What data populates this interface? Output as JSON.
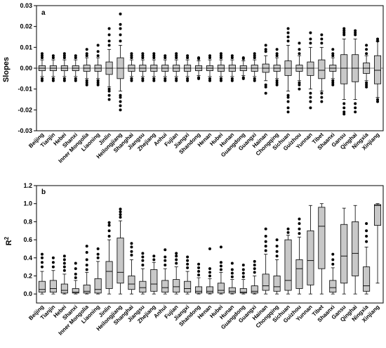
{
  "chart_data": [
    {
      "type": "box",
      "panel_label": "a",
      "ylabel": "Slopes",
      "ylim": [
        -0.03,
        0.03
      ],
      "yticks": [
        -0.03,
        -0.02,
        -0.01,
        0.0,
        0.01,
        0.02,
        0.03
      ],
      "ytick_labels": [
        "-0.03",
        "-0.02",
        "-0.01",
        "0.00",
        "0.01",
        "0.02",
        "0.03"
      ],
      "zero_line": true,
      "categories": [
        "Beijing",
        "Tianjin",
        "Hebei",
        "Shanxi",
        "Inner Mongolia",
        "Liaoning",
        "Jinlin",
        "Heilongjiang",
        "Shanghai",
        "Jiangsu",
        "Zhejiang",
        "Anhui",
        "Fujian",
        "Jiangxi",
        "Shandong",
        "Henan",
        "Hubei",
        "Hunan",
        "Guangdong",
        "Guangxi",
        "Hainan",
        "Chongqing",
        "Sichuan",
        "Guizhou",
        "Yunnan",
        "Tibet",
        "Shaanxi",
        "Gansu",
        "Qinghai",
        "Ningxia",
        "Xinjiang"
      ],
      "boxes": [
        {
          "q1": -0.0012,
          "median": 0.0,
          "q3": 0.0012,
          "wlo": -0.004,
          "whi": 0.004,
          "out": [
            -0.006,
            -0.005,
            0.005,
            0.006,
            0.007
          ]
        },
        {
          "q1": -0.0012,
          "median": 0.0,
          "q3": 0.0012,
          "wlo": -0.004,
          "whi": 0.004,
          "out": [
            -0.006,
            -0.005,
            0.005,
            0.006
          ]
        },
        {
          "q1": -0.0012,
          "median": 0.0,
          "q3": 0.0012,
          "wlo": -0.004,
          "whi": 0.004,
          "out": [
            -0.006,
            -0.005,
            0.005,
            0.006,
            0.007
          ]
        },
        {
          "q1": -0.0012,
          "median": 0.0,
          "q3": 0.0012,
          "wlo": -0.004,
          "whi": 0.004,
          "out": [
            -0.006,
            -0.005,
            0.005,
            0.006
          ]
        },
        {
          "q1": -0.0015,
          "median": 0.0,
          "q3": 0.0015,
          "wlo": -0.005,
          "whi": 0.005,
          "out": [
            -0.008,
            -0.007,
            -0.006,
            0.006,
            0.007,
            0.009
          ]
        },
        {
          "q1": -0.0015,
          "median": 0.0,
          "q3": 0.0015,
          "wlo": -0.005,
          "whi": 0.005,
          "out": [
            -0.008,
            -0.007,
            -0.006,
            0.006,
            0.008,
            0.011
          ]
        },
        {
          "q1": -0.003,
          "median": 0.0,
          "q3": 0.003,
          "wlo": -0.009,
          "whi": 0.009,
          "out": [
            -0.015,
            -0.013,
            -0.011,
            -0.01,
            0.011,
            0.013,
            0.016,
            0.019
          ]
        },
        {
          "q1": -0.005,
          "median": 0.0,
          "q3": 0.005,
          "wlo": -0.011,
          "whi": 0.011,
          "out": [
            -0.02,
            -0.018,
            -0.016,
            -0.014,
            -0.013,
            0.013,
            0.016,
            0.019,
            0.021,
            0.026
          ]
        },
        {
          "q1": -0.0015,
          "median": 0.0,
          "q3": 0.0015,
          "wlo": -0.004,
          "whi": 0.004,
          "out": [
            -0.006,
            -0.005,
            0.005,
            0.006,
            0.007
          ]
        },
        {
          "q1": -0.0015,
          "median": 0.0,
          "q3": 0.0015,
          "wlo": -0.004,
          "whi": 0.004,
          "out": [
            -0.006,
            -0.005,
            0.005,
            0.006,
            0.007
          ]
        },
        {
          "q1": -0.0015,
          "median": 0.0,
          "q3": 0.0015,
          "wlo": -0.004,
          "whi": 0.004,
          "out": [
            -0.006,
            -0.005,
            0.005,
            0.006,
            0.007
          ]
        },
        {
          "q1": -0.0015,
          "median": 0.0,
          "q3": 0.0015,
          "wlo": -0.004,
          "whi": 0.004,
          "out": [
            -0.006,
            -0.005,
            0.005,
            0.006
          ]
        },
        {
          "q1": -0.0015,
          "median": 0.0,
          "q3": 0.0015,
          "wlo": -0.004,
          "whi": 0.004,
          "out": [
            -0.006,
            -0.005,
            0.005,
            0.006,
            0.007
          ]
        },
        {
          "q1": -0.0015,
          "median": 0.0,
          "q3": 0.0015,
          "wlo": -0.004,
          "whi": 0.004,
          "out": [
            -0.006,
            -0.005,
            0.005,
            0.006
          ]
        },
        {
          "q1": -0.0012,
          "median": 0.0,
          "q3": 0.0012,
          "wlo": -0.0035,
          "whi": 0.0035,
          "out": [
            -0.005,
            -0.0045,
            0.0045,
            0.005
          ]
        },
        {
          "q1": -0.0012,
          "median": 0.0,
          "q3": 0.0012,
          "wlo": -0.004,
          "whi": 0.004,
          "out": [
            -0.006,
            -0.005,
            0.005,
            0.006
          ]
        },
        {
          "q1": -0.0015,
          "median": 0.0,
          "q3": 0.0015,
          "wlo": -0.004,
          "whi": 0.004,
          "out": [
            -0.006,
            -0.005,
            0.005,
            0.006,
            0.007
          ]
        },
        {
          "q1": -0.0015,
          "median": 0.0,
          "q3": 0.0015,
          "wlo": -0.004,
          "whi": 0.004,
          "out": [
            -0.006,
            -0.005,
            0.005,
            0.006
          ]
        },
        {
          "q1": -0.0012,
          "median": 0.0,
          "q3": 0.0012,
          "wlo": -0.0035,
          "whi": 0.0035,
          "out": [
            -0.005,
            -0.0045,
            0.0045,
            0.005
          ]
        },
        {
          "q1": -0.0015,
          "median": 0.0,
          "q3": 0.0015,
          "wlo": -0.004,
          "whi": 0.004,
          "out": [
            -0.006,
            -0.005,
            0.005,
            0.006,
            0.007
          ]
        },
        {
          "q1": -0.002,
          "median": 0.0,
          "q3": 0.002,
          "wlo": -0.006,
          "whi": 0.006,
          "out": [
            -0.012,
            -0.009,
            -0.008,
            0.008,
            0.009,
            0.011
          ]
        },
        {
          "q1": -0.0015,
          "median": 0.0,
          "q3": 0.0015,
          "wlo": -0.005,
          "whi": 0.005,
          "out": [
            -0.008,
            -0.007,
            -0.006,
            0.006,
            0.007,
            0.009
          ]
        },
        {
          "q1": -0.0035,
          "median": 0.0,
          "q3": 0.0035,
          "wlo": -0.011,
          "whi": 0.011,
          "out": [
            -0.021,
            -0.019,
            -0.016,
            -0.014,
            -0.013,
            0.013,
            0.015,
            0.017,
            0.019
          ]
        },
        {
          "q1": -0.0015,
          "median": 0.0,
          "q3": 0.0015,
          "wlo": -0.006,
          "whi": 0.006,
          "out": [
            -0.01,
            -0.008,
            -0.007,
            0.007,
            0.009,
            0.012
          ]
        },
        {
          "q1": -0.0035,
          "median": 0.0,
          "q3": 0.003,
          "wlo": -0.01,
          "whi": 0.01,
          "out": [
            -0.019,
            -0.016,
            -0.014,
            -0.012,
            0.012,
            0.014,
            0.017
          ]
        },
        {
          "q1": -0.005,
          "median": -0.001,
          "q3": 0.004,
          "wlo": -0.011,
          "whi": 0.01,
          "out": [
            -0.016,
            -0.014,
            -0.012,
            0.012,
            0.014,
            0.016
          ]
        },
        {
          "q1": -0.0015,
          "median": 0.0,
          "q3": 0.0015,
          "wlo": -0.005,
          "whi": 0.005,
          "out": [
            -0.008,
            -0.007,
            -0.006,
            0.006,
            0.007,
            0.009
          ]
        },
        {
          "q1": -0.0075,
          "median": 0.0,
          "q3": 0.0065,
          "wlo": -0.015,
          "whi": 0.014,
          "out": [
            -0.022,
            -0.021,
            -0.019,
            -0.017,
            0.016,
            0.017,
            0.018,
            0.019
          ]
        },
        {
          "q1": -0.0065,
          "median": 0.0,
          "q3": 0.0065,
          "wlo": -0.015,
          "whi": 0.014,
          "out": [
            -0.021,
            -0.019,
            -0.017,
            0.016,
            0.017,
            0.018
          ]
        },
        {
          "q1": -0.0025,
          "median": 0.0,
          "q3": 0.0025,
          "wlo": -0.006,
          "whi": 0.006,
          "out": [
            -0.009,
            -0.008,
            -0.007,
            0.007,
            0.009,
            0.011
          ]
        },
        {
          "q1": -0.0075,
          "median": -0.001,
          "q3": 0.006,
          "wlo": -0.014,
          "whi": 0.013,
          "out": [
            -0.016,
            -0.015,
            0.013,
            0.014
          ]
        }
      ]
    },
    {
      "type": "box",
      "panel_label": "b",
      "ylabel": "R",
      "ylabel_sup": "2",
      "ylim": [
        -0.1,
        1.2
      ],
      "yticks": [
        0.0,
        0.2,
        0.4,
        0.6,
        0.8,
        1.0,
        1.2
      ],
      "ytick_labels": [
        "0.0",
        "0.2",
        "0.4",
        "0.6",
        "0.8",
        "1.0",
        "1.2"
      ],
      "zero_line": false,
      "categories": [
        "Beijing",
        "Tianjin",
        "Hebei",
        "Shanxi",
        "Inner Mongolia",
        "Liaoning",
        "Jinlin",
        "Heilongjiang",
        "Shanghai",
        "Jiangsu",
        "Zhejiang",
        "Anhui",
        "Fujian",
        "Jiangxi",
        "Shandong",
        "Henan",
        "Hubei",
        "Hunan",
        "Guangdong",
        "Guangxi",
        "Hainan",
        "Chongqing",
        "Sichuan",
        "Guizhou",
        "Yunnan",
        "Tibet",
        "Shaanxi",
        "Gansu",
        "Qinghai",
        "Ningxia",
        "Xinjiang"
      ],
      "boxes": [
        {
          "q1": 0.02,
          "median": 0.05,
          "q3": 0.14,
          "wlo": 0.0,
          "whi": 0.25,
          "out": [
            0.3,
            0.35,
            0.4,
            0.44
          ]
        },
        {
          "q1": 0.02,
          "median": 0.06,
          "q3": 0.15,
          "wlo": 0.0,
          "whi": 0.26,
          "out": [
            0.3,
            0.35,
            0.4
          ]
        },
        {
          "q1": 0.01,
          "median": 0.04,
          "q3": 0.11,
          "wlo": 0.0,
          "whi": 0.22,
          "out": [
            0.26,
            0.3,
            0.34,
            0.38,
            0.42
          ]
        },
        {
          "q1": 0.01,
          "median": 0.02,
          "q3": 0.06,
          "wlo": 0.0,
          "whi": 0.15,
          "out": [
            0.18,
            0.22,
            0.28,
            0.34
          ]
        },
        {
          "q1": 0.01,
          "median": 0.03,
          "q3": 0.1,
          "wlo": 0.0,
          "whi": 0.24,
          "out": [
            0.27,
            0.32,
            0.38,
            0.46,
            0.53
          ]
        },
        {
          "q1": 0.01,
          "median": 0.05,
          "q3": 0.17,
          "wlo": 0.0,
          "whi": 0.36,
          "out": [
            0.4,
            0.44,
            0.5
          ]
        },
        {
          "q1": 0.06,
          "median": 0.25,
          "q3": 0.36,
          "wlo": 0.0,
          "whi": 0.6,
          "out": [
            0.64,
            0.7,
            0.76,
            0.79
          ]
        },
        {
          "q1": 0.12,
          "median": 0.24,
          "q3": 0.62,
          "wlo": 0.0,
          "whi": 0.81,
          "out": [
            0.85,
            0.88,
            0.91,
            0.94
          ]
        },
        {
          "q1": 0.05,
          "median": 0.11,
          "q3": 0.2,
          "wlo": 0.0,
          "whi": 0.38,
          "out": [
            0.43,
            0.47,
            0.52,
            0.56
          ]
        },
        {
          "q1": 0.02,
          "median": 0.07,
          "q3": 0.14,
          "wlo": 0.0,
          "whi": 0.28,
          "out": [
            0.32,
            0.37,
            0.41,
            0.45
          ]
        },
        {
          "q1": 0.03,
          "median": 0.11,
          "q3": 0.27,
          "wlo": 0.0,
          "whi": 0.35,
          "out": [
            0.38,
            0.42
          ]
        },
        {
          "q1": 0.02,
          "median": 0.07,
          "q3": 0.15,
          "wlo": 0.0,
          "whi": 0.28,
          "out": [
            0.32,
            0.37,
            0.41,
            0.49
          ]
        },
        {
          "q1": 0.02,
          "median": 0.08,
          "q3": 0.16,
          "wlo": 0.0,
          "whi": 0.3,
          "out": [
            0.34,
            0.38,
            0.42,
            0.45
          ]
        },
        {
          "q1": 0.02,
          "median": 0.06,
          "q3": 0.14,
          "wlo": 0.0,
          "whi": 0.25,
          "out": [
            0.29,
            0.33,
            0.37,
            0.41
          ]
        },
        {
          "q1": 0.01,
          "median": 0.03,
          "q3": 0.08,
          "wlo": 0.0,
          "whi": 0.18,
          "out": [
            0.21,
            0.25,
            0.29,
            0.33
          ]
        },
        {
          "q1": 0.01,
          "median": 0.03,
          "q3": 0.08,
          "wlo": 0.0,
          "whi": 0.17,
          "out": [
            0.2,
            0.24,
            0.28,
            0.5
          ]
        },
        {
          "q1": 0.01,
          "median": 0.04,
          "q3": 0.12,
          "wlo": 0.0,
          "whi": 0.24,
          "out": [
            0.27,
            0.31,
            0.35,
            0.52
          ]
        },
        {
          "q1": 0.01,
          "median": 0.03,
          "q3": 0.07,
          "wlo": 0.0,
          "whi": 0.16,
          "out": [
            0.19,
            0.23,
            0.27,
            0.34
          ]
        },
        {
          "q1": 0.01,
          "median": 0.02,
          "q3": 0.06,
          "wlo": 0.0,
          "whi": 0.16,
          "out": [
            0.19,
            0.23,
            0.27,
            0.32
          ]
        },
        {
          "q1": 0.01,
          "median": 0.03,
          "q3": 0.09,
          "wlo": 0.0,
          "whi": 0.2,
          "out": [
            0.24,
            0.28,
            0.32,
            0.36
          ]
        },
        {
          "q1": 0.04,
          "median": 0.09,
          "q3": 0.22,
          "wlo": 0.0,
          "whi": 0.44,
          "out": [
            0.48,
            0.53,
            0.58,
            0.64,
            0.72
          ]
        },
        {
          "q1": 0.03,
          "median": 0.08,
          "q3": 0.2,
          "wlo": 0.0,
          "whi": 0.38,
          "out": [
            0.42,
            0.47,
            0.53,
            0.6
          ]
        },
        {
          "q1": 0.04,
          "median": 0.15,
          "q3": 0.6,
          "wlo": 0.0,
          "whi": 0.65,
          "out": [
            0.68,
            0.72
          ]
        },
        {
          "q1": 0.06,
          "median": 0.28,
          "q3": 0.38,
          "wlo": 0.0,
          "whi": 0.63,
          "out": [
            0.67,
            0.72,
            0.78,
            0.83
          ]
        },
        {
          "q1": 0.1,
          "median": 0.37,
          "q3": 0.7,
          "wlo": 0.0,
          "whi": 0.98,
          "out": []
        },
        {
          "q1": 0.28,
          "median": 0.75,
          "q3": 0.96,
          "wlo": 0.0,
          "whi": 1.0,
          "out": []
        },
        {
          "q1": 0.02,
          "median": 0.07,
          "q3": 0.15,
          "wlo": 0.0,
          "whi": 0.29,
          "out": [
            0.33,
            0.38,
            0.44
          ]
        },
        {
          "q1": 0.12,
          "median": 0.42,
          "q3": 0.77,
          "wlo": 0.0,
          "whi": 0.95,
          "out": []
        },
        {
          "q1": 0.2,
          "median": 0.45,
          "q3": 0.8,
          "wlo": 0.0,
          "whi": 0.98,
          "out": []
        },
        {
          "q1": 0.03,
          "median": 0.09,
          "q3": 0.3,
          "wlo": 0.0,
          "whi": 0.52,
          "out": [
            0.58,
            0.64,
            0.7,
            0.78
          ]
        },
        {
          "q1": 0.76,
          "median": 0.98,
          "q3": 0.99,
          "wlo": 0.12,
          "whi": 1.0,
          "out": []
        }
      ]
    }
  ]
}
